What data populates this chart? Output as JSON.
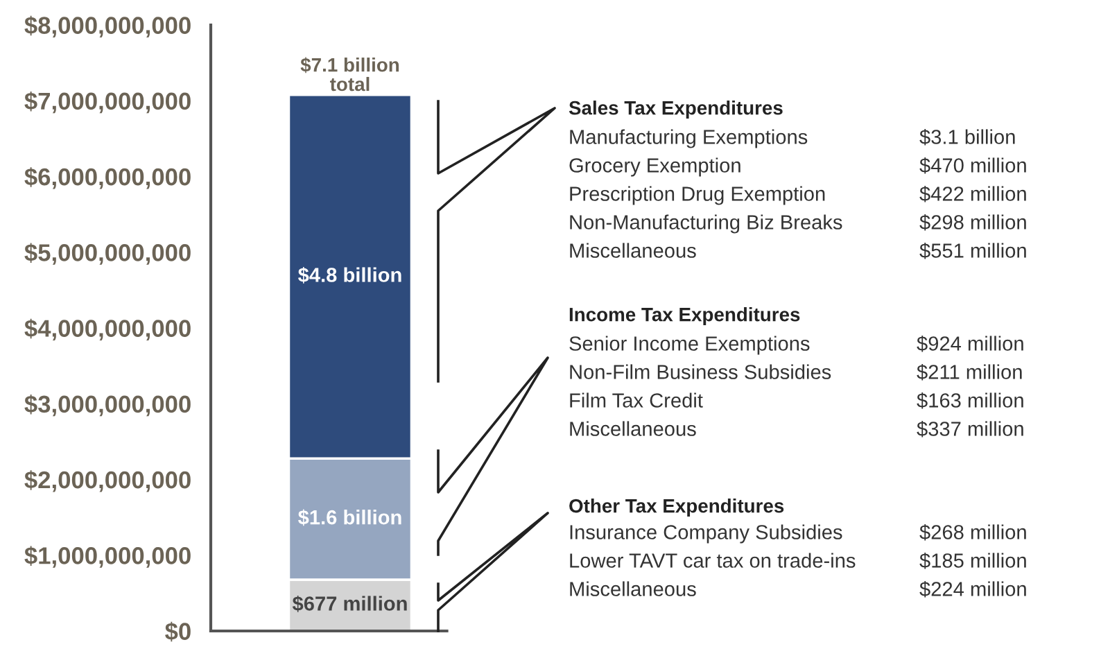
{
  "chart_data": {
    "type": "bar",
    "stacked": true,
    "categories": [
      null
    ],
    "series": [
      {
        "color": "#d4d4d4",
        "values": [
          677000000
        ],
        "value_labels": [
          "$677 million"
        ]
      },
      {
        "color": "#95a6c0",
        "values": [
          1600000000
        ],
        "value_labels": [
          "$1.6 billion"
        ]
      },
      {
        "color": "#2e4b7c",
        "values": [
          4800000000
        ],
        "value_labels": [
          "$4.8 billion"
        ]
      }
    ],
    "totals": [
      "$7.1 billion\ntotal"
    ],
    "ylim": [
      0,
      8000000000
    ],
    "yticks": [
      {
        "value": 0,
        "label": "$0"
      },
      {
        "value": 1000000000,
        "label": "$1,000,000,000"
      },
      {
        "value": 2000000000,
        "label": "$2,000,000,000"
      },
      {
        "value": 3000000000,
        "label": "$3,000,000,000"
      },
      {
        "value": 4000000000,
        "label": "$4,000,000,000"
      },
      {
        "value": 5000000000,
        "label": "$5,000,000,000"
      },
      {
        "value": 6000000000,
        "label": "$6,000,000,000"
      },
      {
        "value": 7000000000,
        "label": "$7,000,000,000"
      },
      {
        "value": 8000000000,
        "label": "$8,000,000,000"
      }
    ],
    "grid": false,
    "legend": false,
    "annotations": [
      "Sales Tax Expenditures",
      "Manufacturing Exemptions",
      "$3.1 billion",
      "Grocery Exemption",
      "$470 million",
      "Prescription Drug Exemption",
      "$422 million",
      "Non-Manufacturing Biz Breaks",
      "$298 million",
      "Miscellaneous",
      "$551 million",
      "Income Tax Expenditures",
      "Senior Income Exemptions",
      "$924 million",
      "Non-Film Business Subsidies",
      "$211 million",
      "Film Tax Credit",
      "$163 million",
      "Miscellaneous",
      "$337 million",
      "Other Tax Expenditures",
      "Insurance Company Subsidies",
      "$268 million",
      "Lower TAVT car tax on trade-ins",
      "$185 million",
      "Miscellaneous",
      "$224 million"
    ]
  }
}
